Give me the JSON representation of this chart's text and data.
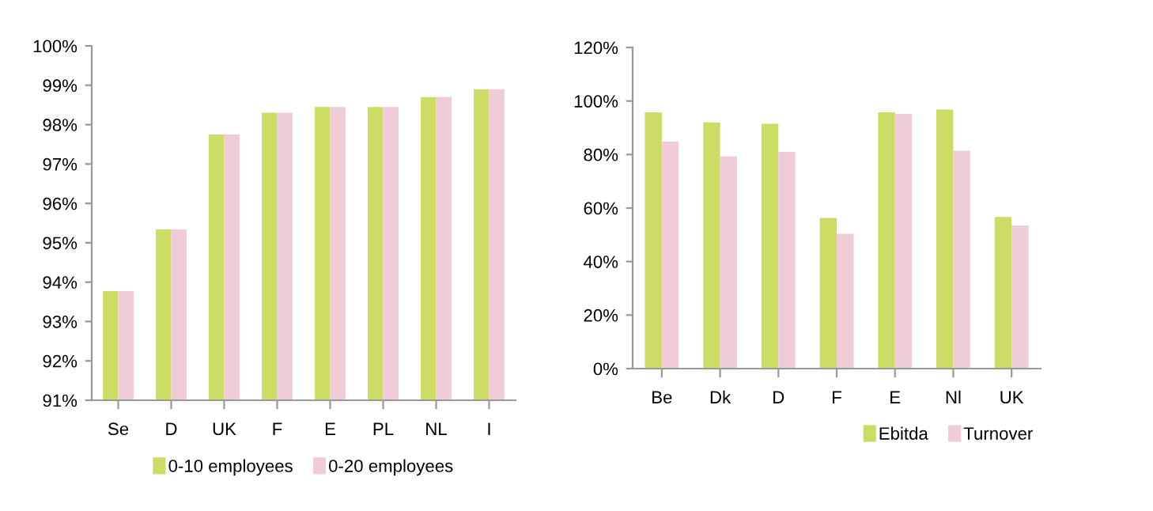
{
  "chart_data": [
    {
      "type": "bar",
      "categories": [
        "Se",
        "D",
        "UK",
        "F",
        "E",
        "PL",
        "NL",
        "I"
      ],
      "series": [
        {
          "name": "0-10 employees",
          "color": "#cddc64",
          "values": [
            93.77,
            95.34,
            97.75,
            98.3,
            98.45,
            98.45,
            98.7,
            98.9
          ]
        },
        {
          "name": "0-20 employees",
          "color": "#f0ccd8",
          "values": [
            93.77,
            95.34,
            97.75,
            98.3,
            98.45,
            98.45,
            98.7,
            98.9
          ]
        }
      ],
      "ylim": [
        91,
        100
      ],
      "yticks": [
        {
          "value": 91,
          "label": "91%"
        },
        {
          "value": 92,
          "label": "92%"
        },
        {
          "value": 93,
          "label": "93%"
        },
        {
          "value": 94,
          "label": "94%"
        },
        {
          "value": 95,
          "label": "95%"
        },
        {
          "value": 96,
          "label": "96%"
        },
        {
          "value": 97,
          "label": "97%"
        },
        {
          "value": 98,
          "label": "98%"
        },
        {
          "value": 99,
          "label": "99%"
        },
        {
          "value": 100,
          "label": "100%"
        }
      ],
      "grid": false,
      "legend": "bottom"
    },
    {
      "type": "bar",
      "categories": [
        "Be",
        "Dk",
        "D",
        "F",
        "E",
        "Nl",
        "UK"
      ],
      "series": [
        {
          "name": "Ebitda",
          "color": "#cddc64",
          "values": [
            95.8,
            92,
            91.5,
            56.3,
            95.8,
            96.8,
            56.7
          ]
        },
        {
          "name": "Turnover",
          "color": "#f0ccd8",
          "values": [
            84.8,
            79.3,
            81,
            50.4,
            95.2,
            81.4,
            53.5
          ]
        }
      ],
      "ylim": [
        0,
        120
      ],
      "yticks": [
        {
          "value": 0,
          "label": "0%"
        },
        {
          "value": 20,
          "label": "20%"
        },
        {
          "value": 40,
          "label": "40%"
        },
        {
          "value": 60,
          "label": "60%"
        },
        {
          "value": 80,
          "label": "80%"
        },
        {
          "value": 100,
          "label": "100%"
        },
        {
          "value": 120,
          "label": "120%"
        }
      ],
      "grid": false,
      "legend": "bottom right"
    }
  ]
}
